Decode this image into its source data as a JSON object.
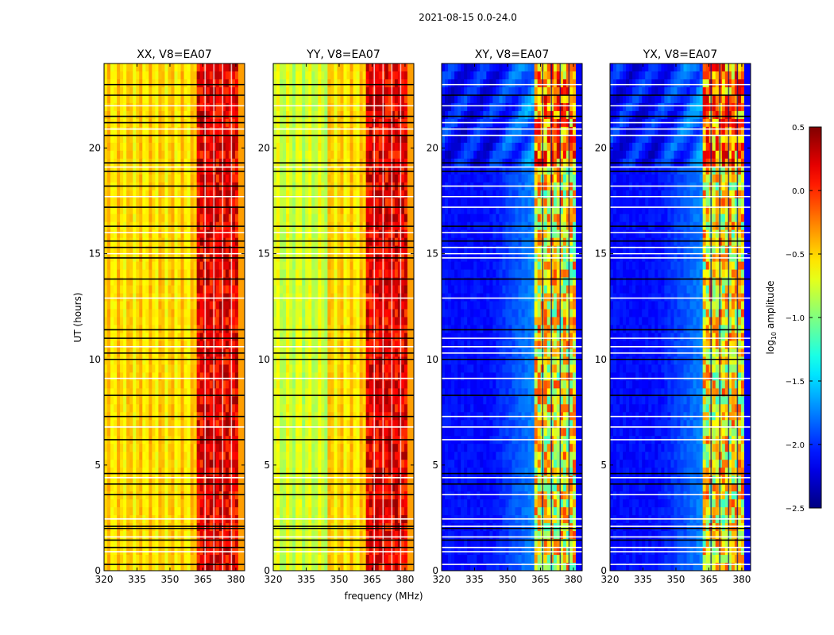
{
  "figure": {
    "suptitle": "2021-08-15 0.0-24.0",
    "xlabel": "frequency (MHz)",
    "ylabel": "UT (hours)"
  },
  "chart_data": {
    "type": "heatmap",
    "panels": [
      {
        "title": "XX, V8=EA07",
        "kind": "parallel"
      },
      {
        "title": "YY, V8=EA07",
        "kind": "parallel"
      },
      {
        "title": "XY, V8=EA07",
        "kind": "cross"
      },
      {
        "title": "YX, V8=EA07",
        "kind": "cross"
      }
    ],
    "x_ticks": [
      320,
      335,
      350,
      365,
      380
    ],
    "x_range": [
      320,
      384
    ],
    "y_ticks": [
      0,
      5,
      10,
      15,
      20
    ],
    "y_range": [
      0,
      24
    ],
    "colorbar": {
      "label_main": "log",
      "label_sub": "10",
      "label_tail": " amplitude",
      "ticks": [
        "0.5",
        "0.0",
        "−0.5",
        "−1.0",
        "−1.5",
        "−2.0",
        "−2.5"
      ],
      "range": [
        -2.5,
        0.5
      ],
      "colormap": "jet"
    },
    "band_edge_mhz": 362,
    "rfi_columns_mhz": [
      366,
      370,
      374,
      378
    ],
    "flag_lines_ut": [
      0.3,
      0.9,
      1.1,
      1.45,
      1.6,
      2.0,
      2.1,
      2.45,
      3.6,
      4.1,
      4.4,
      4.6,
      6.2,
      6.8,
      7.3,
      8.3,
      9.1,
      10.0,
      10.3,
      10.6,
      11.0,
      11.4,
      12.9,
      13.8,
      14.8,
      15.0,
      15.3,
      15.6,
      16.0,
      16.3,
      17.2,
      17.7,
      18.2,
      18.9,
      19.1,
      19.3,
      20.6,
      20.9,
      21.2,
      21.5,
      22.0,
      22.5,
      23.0
    ]
  }
}
